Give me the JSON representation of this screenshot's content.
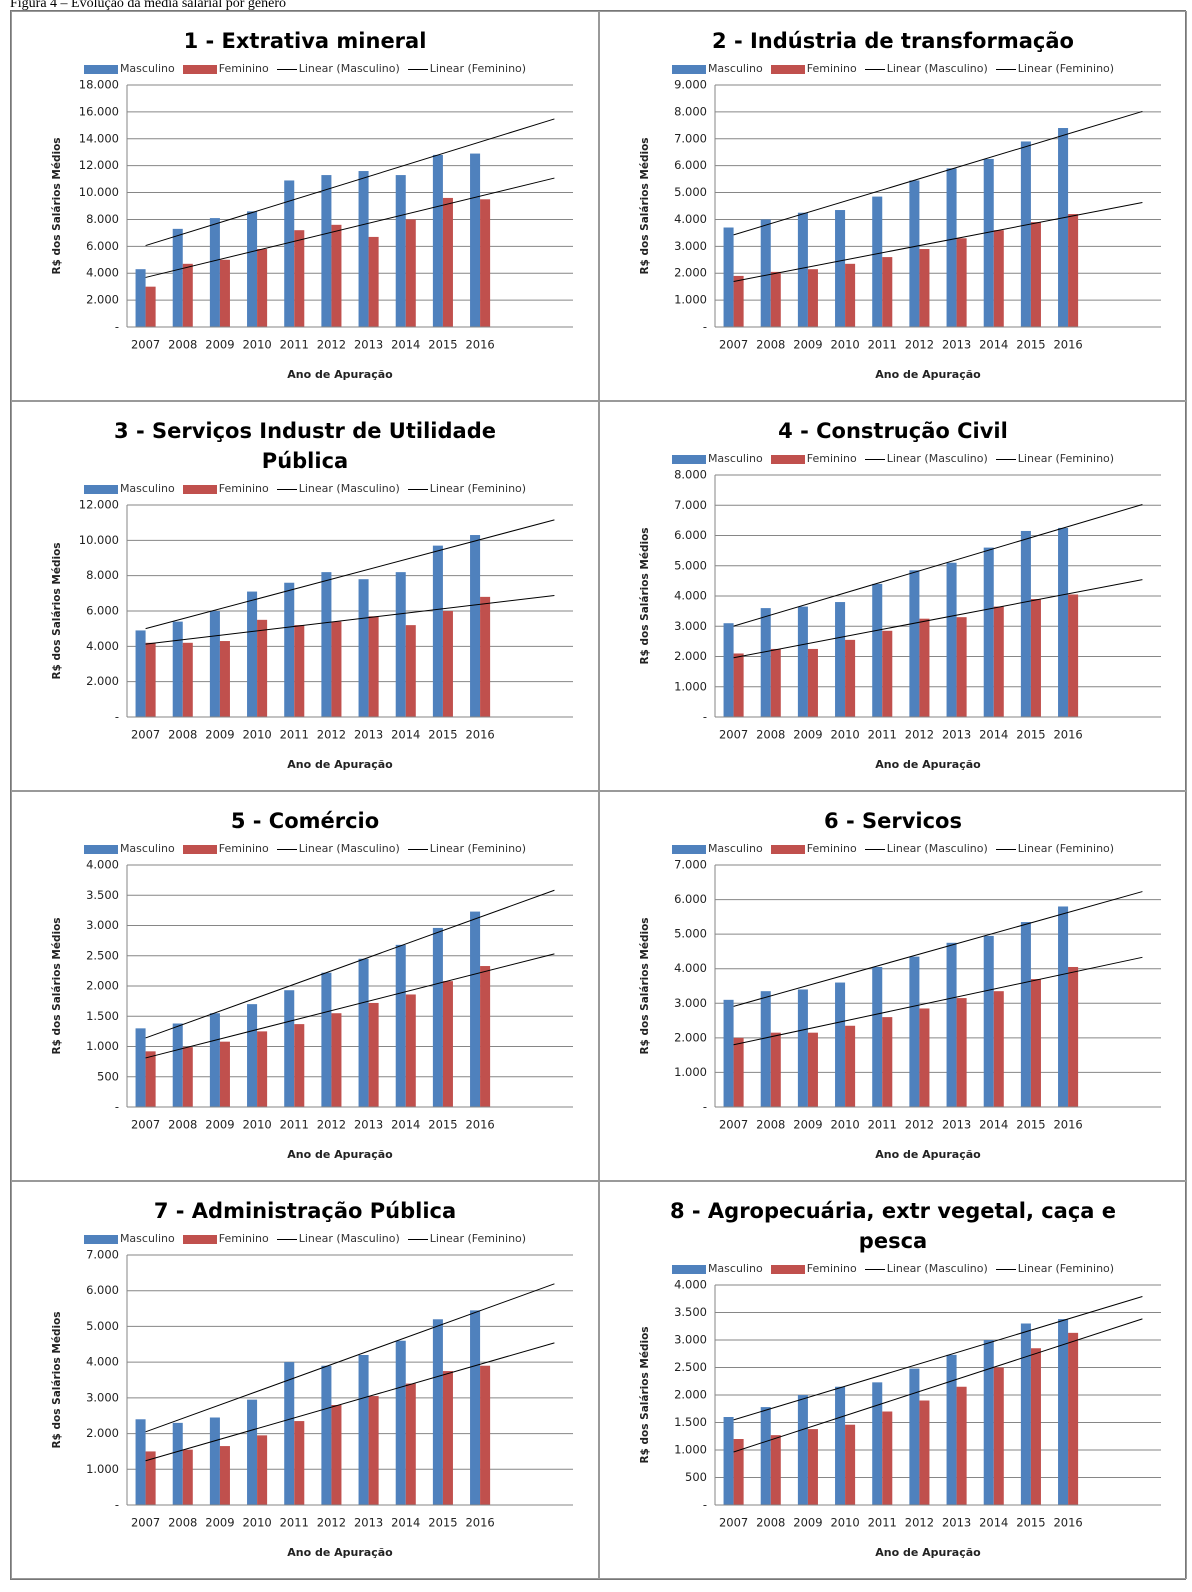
{
  "caption": "Figura 4 – Evolução da média salarial por gênero",
  "chart_data": [
    {
      "type": "bar",
      "title": "1 - Extrativa mineral",
      "x_label": "Ano de Apuração",
      "y_label": "R$ dos Salários Médios",
      "categories": [
        "2007",
        "2008",
        "2009",
        "2010",
        "2011",
        "2012",
        "2013",
        "2014",
        "2015",
        "2016",
        null,
        null
      ],
      "series": [
        {
          "name": "Masculino",
          "color": "#4f81bd",
          "values": [
            4300,
            7300,
            8100,
            8600,
            10900,
            11300,
            11600,
            11300,
            12800,
            12900,
            null,
            null
          ]
        },
        {
          "name": "Feminino",
          "color": "#c0504d",
          "values": [
            3000,
            4700,
            5000,
            5800,
            7200,
            7600,
            6700,
            8000,
            9600,
            9500,
            null,
            null
          ]
        },
        {
          "name": "Linear (Masculino)",
          "color": "#000000",
          "trendline": "linear",
          "fits": "Masculino"
        },
        {
          "name": "Linear (Feminino)",
          "color": "#000000",
          "trendline": "linear",
          "fits": "Feminino"
        }
      ],
      "ylim": [
        0,
        18000
      ],
      "grid": true,
      "yticks": [
        {
          "value": 0,
          "label": "-"
        },
        {
          "value": 2000,
          "label": "2.000"
        },
        {
          "value": 4000,
          "label": "4.000"
        },
        {
          "value": 6000,
          "label": "6.000"
        },
        {
          "value": 8000,
          "label": "8.000"
        },
        {
          "value": 10000,
          "label": "10.000"
        },
        {
          "value": 12000,
          "label": "12.000"
        },
        {
          "value": 14000,
          "label": "14.000"
        },
        {
          "value": 16000,
          "label": "16.000"
        },
        {
          "value": 18000,
          "label": "18.000"
        }
      ]
    },
    {
      "type": "bar",
      "title": "2 - Indústria de transformação",
      "x_label": "Ano de Apuração",
      "y_label": "R$ dos Salários Médios",
      "categories": [
        "2007",
        "2008",
        "2009",
        "2010",
        "2011",
        "2012",
        "2013",
        "2014",
        "2015",
        "2016",
        null,
        null
      ],
      "series": [
        {
          "name": "Masculino",
          "color": "#4f81bd",
          "values": [
            3700,
            4000,
            4250,
            4350,
            4850,
            5450,
            5900,
            6250,
            6900,
            7400,
            null,
            null
          ]
        },
        {
          "name": "Feminino",
          "color": "#c0504d",
          "values": [
            1900,
            2050,
            2150,
            2350,
            2600,
            2900,
            3300,
            3600,
            3900,
            4200,
            null,
            null
          ]
        },
        {
          "name": "Linear (Masculino)",
          "color": "#000000",
          "trendline": "linear",
          "fits": "Masculino"
        },
        {
          "name": "Linear (Feminino)",
          "color": "#000000",
          "trendline": "linear",
          "fits": "Feminino"
        }
      ],
      "ylim": [
        0,
        9000
      ],
      "grid": true,
      "yticks": [
        {
          "value": 0,
          "label": "-"
        },
        {
          "value": 1000,
          "label": "1.000"
        },
        {
          "value": 2000,
          "label": "2.000"
        },
        {
          "value": 3000,
          "label": "3.000"
        },
        {
          "value": 4000,
          "label": "4.000"
        },
        {
          "value": 5000,
          "label": "5.000"
        },
        {
          "value": 6000,
          "label": "6.000"
        },
        {
          "value": 7000,
          "label": "7.000"
        },
        {
          "value": 8000,
          "label": "8.000"
        },
        {
          "value": 9000,
          "label": "9.000"
        }
      ]
    },
    {
      "type": "bar",
      "title": "3 - Serviços Industr de Utilidade Pública",
      "x_label": "Ano de Apuração",
      "y_label": "R$ dos Salários Médios",
      "categories": [
        "2007",
        "2008",
        "2009",
        "2010",
        "2011",
        "2012",
        "2013",
        "2014",
        "2015",
        "2016",
        null,
        null
      ],
      "series": [
        {
          "name": "Masculino",
          "color": "#4f81bd",
          "values": [
            4900,
            5400,
            6000,
            7100,
            7600,
            8200,
            7800,
            8200,
            9700,
            10300,
            null,
            null
          ]
        },
        {
          "name": "Feminino",
          "color": "#c0504d",
          "values": [
            4200,
            4200,
            4300,
            5500,
            5200,
            5400,
            5700,
            5200,
            6000,
            6800,
            null,
            null
          ]
        },
        {
          "name": "Linear (Masculino)",
          "color": "#000000",
          "trendline": "linear",
          "fits": "Masculino"
        },
        {
          "name": "Linear (Feminino)",
          "color": "#000000",
          "trendline": "linear",
          "fits": "Feminino"
        }
      ],
      "ylim": [
        0,
        12000
      ],
      "grid": true,
      "yticks": [
        {
          "value": 0,
          "label": "-"
        },
        {
          "value": 2000,
          "label": "2.000"
        },
        {
          "value": 4000,
          "label": "4.000"
        },
        {
          "value": 6000,
          "label": "6.000"
        },
        {
          "value": 8000,
          "label": "8.000"
        },
        {
          "value": 10000,
          "label": "10.000"
        },
        {
          "value": 12000,
          "label": "12.000"
        }
      ]
    },
    {
      "type": "bar",
      "title": "4 - Construção Civil",
      "x_label": "Ano de Apuração",
      "y_label": "R$ dos Salários Médios",
      "categories": [
        "2007",
        "2008",
        "2009",
        "2010",
        "2011",
        "2012",
        "2013",
        "2014",
        "2015",
        "2016",
        null,
        null
      ],
      "series": [
        {
          "name": "Masculino",
          "color": "#4f81bd",
          "values": [
            3100,
            3600,
            3650,
            3800,
            4400,
            4850,
            5100,
            5600,
            6150,
            6250,
            null,
            null
          ]
        },
        {
          "name": "Feminino",
          "color": "#c0504d",
          "values": [
            2100,
            2250,
            2250,
            2550,
            2850,
            3250,
            3300,
            3650,
            3900,
            4050,
            null,
            null
          ]
        },
        {
          "name": "Linear (Masculino)",
          "color": "#000000",
          "trendline": "linear",
          "fits": "Masculino"
        },
        {
          "name": "Linear (Feminino)",
          "color": "#000000",
          "trendline": "linear",
          "fits": "Feminino"
        }
      ],
      "ylim": [
        0,
        8000
      ],
      "grid": true,
      "yticks": [
        {
          "value": 0,
          "label": "-"
        },
        {
          "value": 1000,
          "label": "1.000"
        },
        {
          "value": 2000,
          "label": "2.000"
        },
        {
          "value": 3000,
          "label": "3.000"
        },
        {
          "value": 4000,
          "label": "4.000"
        },
        {
          "value": 5000,
          "label": "5.000"
        },
        {
          "value": 6000,
          "label": "6.000"
        },
        {
          "value": 7000,
          "label": "7.000"
        },
        {
          "value": 8000,
          "label": "8.000"
        }
      ]
    },
    {
      "type": "bar",
      "title": "5 - Comércio",
      "x_label": "Ano de Apuração",
      "y_label": "R$ dos Salários Médios",
      "categories": [
        "2007",
        "2008",
        "2009",
        "2010",
        "2011",
        "2012",
        "2013",
        "2014",
        "2015",
        "2016",
        null,
        null
      ],
      "series": [
        {
          "name": "Masculino",
          "color": "#4f81bd",
          "values": [
            1300,
            1380,
            1550,
            1700,
            1930,
            2220,
            2450,
            2680,
            2960,
            3230,
            null,
            null
          ]
        },
        {
          "name": "Feminino",
          "color": "#c0504d",
          "values": [
            920,
            990,
            1080,
            1250,
            1370,
            1550,
            1720,
            1860,
            2080,
            2330,
            null,
            null
          ]
        },
        {
          "name": "Linear (Masculino)",
          "color": "#000000",
          "trendline": "linear",
          "fits": "Masculino"
        },
        {
          "name": "Linear (Feminino)",
          "color": "#000000",
          "trendline": "linear",
          "fits": "Feminino"
        }
      ],
      "ylim": [
        0,
        4000
      ],
      "grid": true,
      "yticks": [
        {
          "value": 0,
          "label": "-"
        },
        500,
        {
          "value": 1000,
          "label": "1.000"
        },
        {
          "value": 1500,
          "label": "1.500"
        },
        {
          "value": 2000,
          "label": "2.000"
        },
        {
          "value": 2500,
          "label": "2.500"
        },
        {
          "value": 3000,
          "label": "3.000"
        },
        {
          "value": 3500,
          "label": "3.500"
        },
        {
          "value": 4000,
          "label": "4.000"
        }
      ]
    },
    {
      "type": "bar",
      "title": "6 - Servicos",
      "x_label": "Ano de Apuração",
      "y_label": "R$ dos Salários Médios",
      "categories": [
        "2007",
        "2008",
        "2009",
        "2010",
        "2011",
        "2012",
        "2013",
        "2014",
        "2015",
        "2016",
        null,
        null
      ],
      "series": [
        {
          "name": "Masculino",
          "color": "#4f81bd",
          "values": [
            3100,
            3350,
            3400,
            3600,
            4050,
            4350,
            4750,
            4950,
            5350,
            5800,
            null,
            null
          ]
        },
        {
          "name": "Feminino",
          "color": "#c0504d",
          "values": [
            2000,
            2150,
            2150,
            2350,
            2600,
            2850,
            3150,
            3350,
            3700,
            4050,
            null,
            null
          ]
        },
        {
          "name": "Linear (Masculino)",
          "color": "#000000",
          "trendline": "linear",
          "fits": "Masculino"
        },
        {
          "name": "Linear (Feminino)",
          "color": "#000000",
          "trendline": "linear",
          "fits": "Feminino"
        }
      ],
      "ylim": [
        0,
        7000
      ],
      "grid": true,
      "yticks": [
        {
          "value": 0,
          "label": "-"
        },
        {
          "value": 1000,
          "label": "1.000"
        },
        {
          "value": 2000,
          "label": "2.000"
        },
        {
          "value": 3000,
          "label": "3.000"
        },
        {
          "value": 4000,
          "label": "4.000"
        },
        {
          "value": 5000,
          "label": "5.000"
        },
        {
          "value": 6000,
          "label": "6.000"
        },
        {
          "value": 7000,
          "label": "7.000"
        }
      ]
    },
    {
      "type": "bar",
      "title": "7 - Administração Pública",
      "x_label": "Ano de Apuração",
      "y_label": "R$ dos Salários Médios",
      "categories": [
        "2007",
        "2008",
        "2009",
        "2010",
        "2011",
        "2012",
        "2013",
        "2014",
        "2015",
        "2016",
        null,
        null
      ],
      "series": [
        {
          "name": "Masculino",
          "color": "#4f81bd",
          "values": [
            2400,
            2300,
            2450,
            2950,
            4000,
            3900,
            4200,
            4600,
            5200,
            5450,
            null,
            null
          ]
        },
        {
          "name": "Feminino",
          "color": "#c0504d",
          "values": [
            1500,
            1550,
            1650,
            1950,
            2350,
            2800,
            3050,
            3400,
            3750,
            3900,
            null,
            null
          ]
        },
        {
          "name": "Linear (Masculino)",
          "color": "#000000",
          "trendline": "linear",
          "fits": "Masculino"
        },
        {
          "name": "Linear (Feminino)",
          "color": "#000000",
          "trendline": "linear",
          "fits": "Feminino"
        }
      ],
      "ylim": [
        0,
        7000
      ],
      "grid": true,
      "yticks": [
        {
          "value": 0,
          "label": "-"
        },
        {
          "value": 1000,
          "label": "1.000"
        },
        {
          "value": 2000,
          "label": "2.000"
        },
        {
          "value": 3000,
          "label": "3.000"
        },
        {
          "value": 4000,
          "label": "4.000"
        },
        {
          "value": 5000,
          "label": "5.000"
        },
        {
          "value": 6000,
          "label": "6.000"
        },
        {
          "value": 7000,
          "label": "7.000"
        }
      ]
    },
    {
      "type": "bar",
      "title": "8 - Agropecuária, extr vegetal, caça e pesca",
      "x_label": "Ano de Apuração",
      "y_label": "R$ dos Salários Médios",
      "categories": [
        "2007",
        "2008",
        "2009",
        "2010",
        "2011",
        "2012",
        "2013",
        "2014",
        "2015",
        "2016",
        null,
        null
      ],
      "series": [
        {
          "name": "Masculino",
          "color": "#4f81bd",
          "values": [
            1600,
            1780,
            2000,
            2150,
            2230,
            2480,
            2730,
            3000,
            3300,
            3380,
            null,
            null
          ]
        },
        {
          "name": "Feminino",
          "color": "#c0504d",
          "values": [
            1200,
            1270,
            1380,
            1460,
            1700,
            1900,
            2150,
            2500,
            2850,
            3130,
            null,
            null
          ]
        },
        {
          "name": "Linear (Masculino)",
          "color": "#000000",
          "trendline": "linear",
          "fits": "Masculino"
        },
        {
          "name": "Linear (Feminino)",
          "color": "#000000",
          "trendline": "linear",
          "fits": "Feminino"
        }
      ],
      "ylim": [
        0,
        4000
      ],
      "grid": true,
      "yticks": [
        {
          "value": 0,
          "label": "-"
        },
        500,
        {
          "value": 1000,
          "label": "1.000"
        },
        {
          "value": 1500,
          "label": "1.500"
        },
        {
          "value": 2000,
          "label": "2.000"
        },
        {
          "value": 2500,
          "label": "2.500"
        },
        {
          "value": 3000,
          "label": "3.000"
        },
        {
          "value": 3500,
          "label": "3.500"
        },
        {
          "value": 4000,
          "label": "4.000"
        }
      ]
    }
  ]
}
